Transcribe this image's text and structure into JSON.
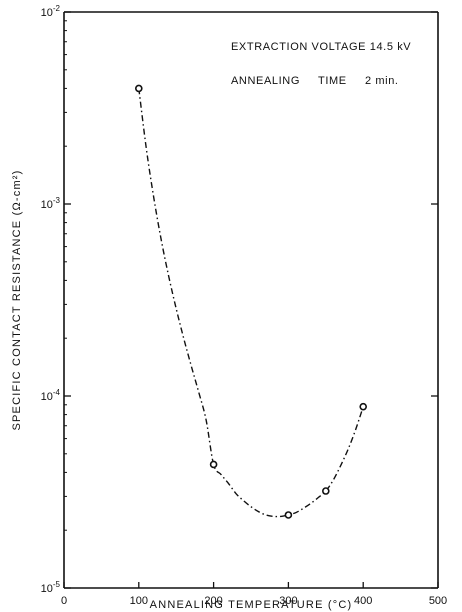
{
  "chart_data": {
    "type": "scatter",
    "title": "",
    "xlabel": "ANNEALING TEMPERATURE (°C)",
    "ylabel": "SPECIFIC CONTACT RESISTANCE (Ω-cm²)",
    "x_scale": "linear",
    "y_scale": "log",
    "xlim": [
      0,
      500
    ],
    "ylim": [
      1e-05,
      0.01
    ],
    "x_ticks": [
      "0",
      "100",
      "200",
      "300",
      "400",
      "500"
    ],
    "y_ticks": [
      {
        "base": "10",
        "exp": "-5"
      },
      {
        "base": "10",
        "exp": "-4"
      },
      {
        "base": "10",
        "exp": "-3"
      },
      {
        "base": "10",
        "exp": "-2"
      }
    ],
    "grid": false,
    "points": [
      {
        "x": 100,
        "y": 0.004
      },
      {
        "x": 200,
        "y": 4.4e-05
      },
      {
        "x": 300,
        "y": 2.4e-05
      },
      {
        "x": 350,
        "y": 3.2e-05
      },
      {
        "x": 400,
        "y": 8.8e-05
      }
    ],
    "fit_curve": {
      "style": "dash-dot",
      "x": [
        100,
        110,
        120,
        130,
        140,
        150,
        160,
        170,
        180,
        190,
        200,
        210,
        220,
        230,
        240,
        250,
        260,
        270,
        280,
        290,
        300,
        310,
        320,
        330,
        340,
        350,
        360,
        370,
        380,
        390,
        400
      ],
      "y": [
        0.004,
        0.00195,
        0.00108,
        0.00065,
        0.00042,
        0.000285,
        0.0002,
        0.000144,
        0.000105,
        7.5e-05,
        4.4e-05,
        3.9e-05,
        3.5e-05,
        3.1e-05,
        2.85e-05,
        2.65e-05,
        2.5e-05,
        2.4e-05,
        2.36e-05,
        2.36e-05,
        2.4e-05,
        2.47e-05,
        2.6e-05,
        2.76e-05,
        2.96e-05,
        3.2e-05,
        3.65e-05,
        4.35e-05,
        5.3e-05,
        6.7e-05,
        8.8e-05
      ]
    },
    "annotations": [
      {
        "text": "EXTRACTION VOLTAGE 14.5 kV"
      },
      {
        "text": "ANNEALING     TIME     2 min."
      }
    ]
  }
}
